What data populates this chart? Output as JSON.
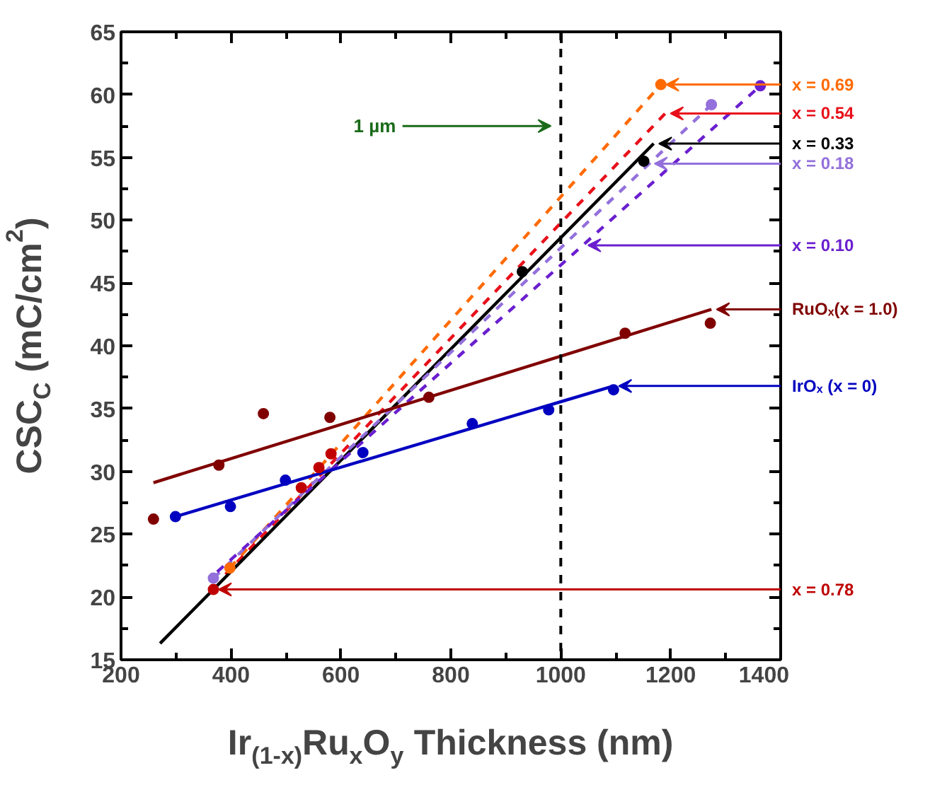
{
  "chart_data": {
    "type": "line",
    "xlabel": "Ir$_{(1-x)}$Ru$_{x}$O$_{y}$ Thickness (nm)",
    "ylabel": "CSC$_{C}$ (mC/cm$^{2}$)",
    "xlim": [
      200,
      1400
    ],
    "xticks": [
      200,
      400,
      600,
      800,
      1000,
      1200,
      1400
    ],
    "ylim": [
      15,
      65
    ],
    "yticks": [
      15,
      20,
      25,
      30,
      35,
      40,
      45,
      50,
      55,
      60,
      65
    ],
    "grid": false,
    "series": [
      {
        "color": "#ff6a00",
        "line_style": "dashed",
        "marker": "none",
        "x": [
          398,
          1182
        ],
        "values": [
          22.3,
          60.8
        ]
      },
      {
        "color": "#e8101a",
        "line_style": "dashed",
        "marker": "none",
        "x": [
          390,
          1190
        ],
        "values": [
          21.8,
          58.5
        ]
      },
      {
        "color": "#000000",
        "line_style": "solid",
        "marker": "none",
        "x": [
          271,
          1169
        ],
        "values": [
          16.3,
          56.1
        ]
      },
      {
        "color": "#9370db",
        "line_style": "dashed",
        "marker": "none",
        "x": [
          368,
          1161,
          1274
        ],
        "values": [
          21.5,
          54.5,
          59.2
        ]
      },
      {
        "color": "#6a1fcf",
        "line_style": "dashed",
        "marker": "none",
        "x": [
          375,
          1040,
          1363
        ],
        "values": [
          22,
          48,
          60.7
        ]
      },
      {
        "color": "#800000",
        "line_style": "solid",
        "marker": "none",
        "x": [
          259,
          1274
        ],
        "values": [
          29.1,
          42.9
        ]
      },
      {
        "color": "#0000c0",
        "line_style": "solid",
        "marker": "none",
        "x": [
          299,
          1096
        ],
        "values": [
          26.4,
          36.8
        ]
      },
      {
        "type": "scatter",
        "marker": "circle",
        "color": "#800000",
        "x": [
          259,
          378,
          459,
          580,
          760,
          1117,
          1272
        ],
        "values": [
          26.2,
          30.5,
          34.6,
          34.3,
          35.9,
          41.0,
          41.8
        ]
      },
      {
        "type": "scatter",
        "marker": "circle",
        "color": "#0000c0",
        "x": [
          299,
          399,
          499,
          640,
          839,
          978,
          1096
        ],
        "values": [
          26.4,
          27.2,
          29.3,
          31.5,
          33.8,
          34.9,
          36.5
        ]
      },
      {
        "type": "scatter",
        "marker": "circle",
        "color": "#c00000",
        "x": [
          368,
          528,
          560,
          582
        ],
        "values": [
          20.6,
          28.7,
          30.3,
          31.4
        ]
      },
      {
        "type": "scatter",
        "marker": "circle",
        "color": "#000000",
        "x": [
          930,
          1151
        ],
        "values": [
          45.9,
          54.7
        ]
      },
      {
        "type": "scatter",
        "marker": "circle",
        "color": "#ff6a00",
        "x": [
          398,
          1182
        ],
        "values": [
          22.3,
          60.8
        ]
      },
      {
        "type": "scatter",
        "marker": "circle",
        "color": "#9370db",
        "x": [
          368,
          1274
        ],
        "values": [
          21.5,
          59.2
        ]
      },
      {
        "type": "scatter",
        "marker": "circle",
        "color": "#6a1fcf",
        "x": [
          1363
        ],
        "values": [
          60.7
        ]
      }
    ],
    "ref_lines": [
      {
        "axis": "x",
        "value": 1000,
        "label": "1 µm",
        "color": "#000000",
        "line_style": "dashed"
      }
    ],
    "annotations": [
      {
        "text": "x = 0.69",
        "x": 1182,
        "y": 60.8
      },
      {
        "text": "x = 0.54",
        "x": 1190,
        "y": 58.5
      },
      {
        "text": "x = 0.33",
        "x": 1169,
        "y": 56.1
      },
      {
        "text": "x = 0.18",
        "x": 1161,
        "y": 54.5
      },
      {
        "text": "x = 0.10",
        "x": 1040,
        "y": 48
      },
      {
        "text": "RuOₓ(x = 1.0)",
        "x": 1274,
        "y": 42.9
      },
      {
        "text": "IrOₓ (x = 0)",
        "x": 1096,
        "y": 36.8
      },
      {
        "text": "x = 0.78",
        "x": 368,
        "y": 20.6
      }
    ]
  }
}
